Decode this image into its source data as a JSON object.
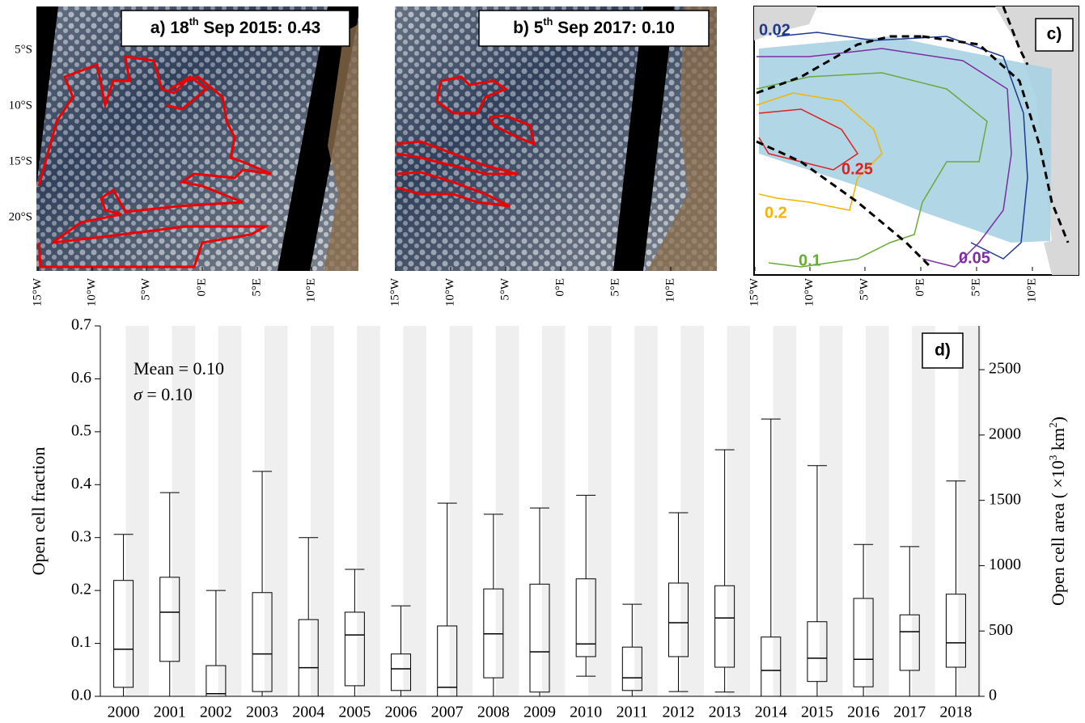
{
  "panels": [
    {
      "title_parts": [
        "a) 18",
        "th",
        " Sep 2015: 0.43"
      ],
      "xticks": [
        "15°W",
        "10°W",
        "5°W",
        "0°E",
        "5°E",
        "10°E"
      ],
      "yticks": [
        "5°S",
        "10°S",
        "15°S",
        "20°S"
      ]
    },
    {
      "title_parts": [
        "b) 5",
        "th",
        " Sep 2017: 0.10"
      ],
      "xticks": [
        "15°W",
        "10°W",
        "5°W",
        "0°E",
        "5°E",
        "10°E"
      ]
    },
    {
      "title": "c)",
      "xticks": [
        "15°W",
        "10°W",
        "5°W",
        "0°E",
        "5°E",
        "10°E"
      ],
      "contour_labels": [
        {
          "text": "0.02",
          "color": "#1f3a8f"
        },
        {
          "text": "0.25",
          "color": "#e02020"
        },
        {
          "text": "0.2",
          "color": "#f5b400"
        },
        {
          "text": "0.1",
          "color": "#6aaa3a"
        },
        {
          "text": "0.05",
          "color": "#7b2fa0"
        }
      ]
    }
  ],
  "chart_data": {
    "type": "box",
    "panel_label": "d)",
    "ylabel": "Open cell fraction",
    "y2label_parts": [
      "Open cell area ( ×10",
      "3",
      " km",
      "2",
      ")"
    ],
    "annotations": [
      "Mean = 0.10"
    ],
    "sigma_parts": [
      "σ",
      " = 0.10"
    ],
    "categories": [
      "2000",
      "2001",
      "2002",
      "2003",
      "2004",
      "2005",
      "2006",
      "2007",
      "2008",
      "2009",
      "2010",
      "2011",
      "2012",
      "2013",
      "2014",
      "2015",
      "2016",
      "2017",
      "2018"
    ],
    "boxes": [
      {
        "whislo": 0,
        "q1": 0.017,
        "med": 0.089,
        "q3": 0.219,
        "whishi": 0.306
      },
      {
        "whislo": 0,
        "q1": 0.066,
        "med": 0.159,
        "q3": 0.225,
        "whishi": 0.385
      },
      {
        "whislo": 0,
        "q1": 0,
        "med": 0.005,
        "q3": 0.058,
        "whishi": 0.2
      },
      {
        "whislo": 0,
        "q1": 0.009,
        "med": 0.08,
        "q3": 0.196,
        "whishi": 0.425
      },
      {
        "whislo": 0,
        "q1": 0,
        "med": 0.054,
        "q3": 0.145,
        "whishi": 0.3
      },
      {
        "whislo": 0,
        "q1": 0.02,
        "med": 0.116,
        "q3": 0.159,
        "whishi": 0.24
      },
      {
        "whislo": 0,
        "q1": 0.011,
        "med": 0.052,
        "q3": 0.08,
        "whishi": 0.171
      },
      {
        "whislo": 0,
        "q1": 0,
        "med": 0.017,
        "q3": 0.133,
        "whishi": 0.365
      },
      {
        "whislo": 0,
        "q1": 0.035,
        "med": 0.118,
        "q3": 0.203,
        "whishi": 0.344
      },
      {
        "whislo": 0,
        "q1": 0.008,
        "med": 0.084,
        "q3": 0.212,
        "whishi": 0.356
      },
      {
        "whislo": 0.038,
        "q1": 0.075,
        "med": 0.099,
        "q3": 0.222,
        "whishi": 0.38
      },
      {
        "whislo": 0,
        "q1": 0.011,
        "med": 0.035,
        "q3": 0.093,
        "whishi": 0.174
      },
      {
        "whislo": 0.009,
        "q1": 0.075,
        "med": 0.139,
        "q3": 0.214,
        "whishi": 0.347
      },
      {
        "whislo": 0.008,
        "q1": 0.055,
        "med": 0.148,
        "q3": 0.209,
        "whishi": 0.466
      },
      {
        "whislo": 0,
        "q1": 0,
        "med": 0.049,
        "q3": 0.112,
        "whishi": 0.524
      },
      {
        "whislo": 0,
        "q1": 0.028,
        "med": 0.072,
        "q3": 0.141,
        "whishi": 0.436
      },
      {
        "whislo": 0,
        "q1": 0.018,
        "med": 0.07,
        "q3": 0.185,
        "whishi": 0.287
      },
      {
        "whislo": 0,
        "q1": 0.049,
        "med": 0.122,
        "q3": 0.154,
        "whishi": 0.283
      },
      {
        "whislo": 0,
        "q1": 0.055,
        "med": 0.101,
        "q3": 0.193,
        "whishi": 0.407
      }
    ],
    "color": "#000000",
    "band_color": "#efefef",
    "ylim": [
      0,
      0.7
    ],
    "yticks": [
      {
        "value": 0,
        "label": "0.0"
      },
      0.1,
      0.2,
      0.3,
      0.4,
      0.5,
      0.6,
      0.7
    ],
    "y2lim": [
      0,
      2835
    ],
    "y2ticks": [
      0,
      500,
      1000,
      1500,
      2000,
      2500
    ]
  }
}
